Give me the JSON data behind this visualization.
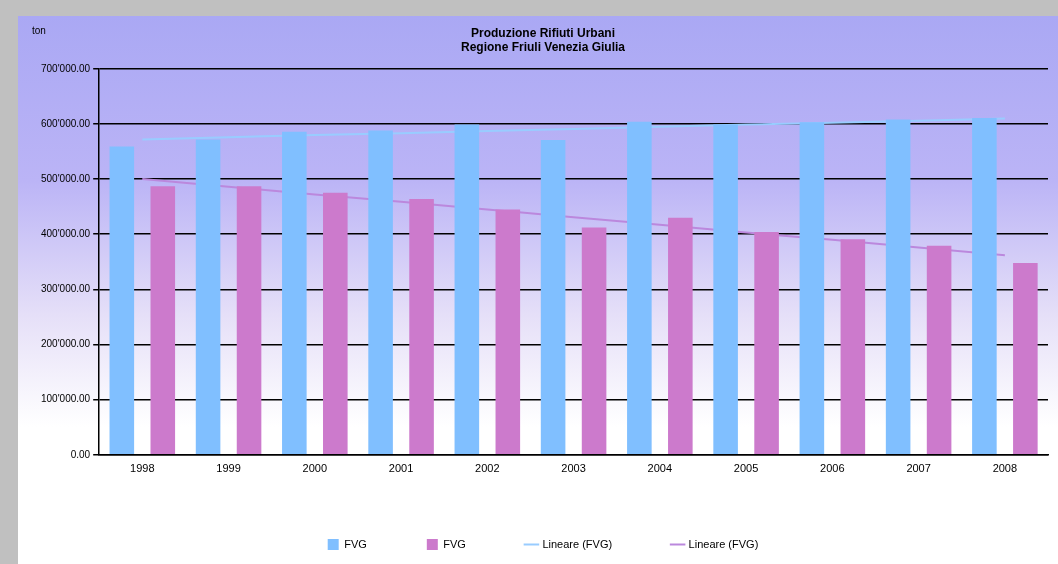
{
  "chart_data": {
    "type": "bar",
    "title": "Produzione Rifiuti Urbani",
    "subtitle": "Regione Friuli Venezia Giulia",
    "ylabel": "ton",
    "categories": [
      "1998",
      "1999",
      "2000",
      "2001",
      "2002",
      "2003",
      "2004",
      "2005",
      "2006",
      "2007",
      "2008"
    ],
    "series": [
      {
        "name": "FVG",
        "color": "#80bfff",
        "values": [
          559000,
          572000,
          586000,
          588000,
          599000,
          571000,
          604000,
          599000,
          603000,
          608000,
          611000
        ]
      },
      {
        "name": "FVG",
        "color": "#cc7acc",
        "values": [
          487000,
          487000,
          475000,
          464000,
          445000,
          412000,
          430000,
          404000,
          391000,
          379000,
          348000
        ]
      },
      {
        "name": "Lineare (FVG)",
        "type": "line",
        "color": "#99ccff",
        "values": [
          572000,
          576000,
          580000,
          583000,
          587000,
          591000,
          595000,
          599000,
          602000,
          606000,
          610000
        ]
      },
      {
        "name": "Lineare (FVG)",
        "type": "line",
        "color": "#bb88dd",
        "values": [
          500000,
          486000,
          472000,
          459000,
          445000,
          431000,
          417000,
          403000,
          390000,
          376000,
          362000
        ]
      }
    ],
    "ylim": [
      0,
      700000
    ],
    "yticks": [
      {
        "value": 0,
        "label": "0.00"
      },
      {
        "value": 100000,
        "label": "100'000.00"
      },
      {
        "value": 200000,
        "label": "200'000.00"
      },
      {
        "value": 300000,
        "label": "300'000.00"
      },
      {
        "value": 400000,
        "label": "400'000.00"
      },
      {
        "value": 500000,
        "label": "500'000.00"
      },
      {
        "value": 600000,
        "label": "600'000.00"
      },
      {
        "value": 700000,
        "label": "700'000.00"
      }
    ],
    "grid": "y",
    "legend": "bottom",
    "marker": "none"
  }
}
